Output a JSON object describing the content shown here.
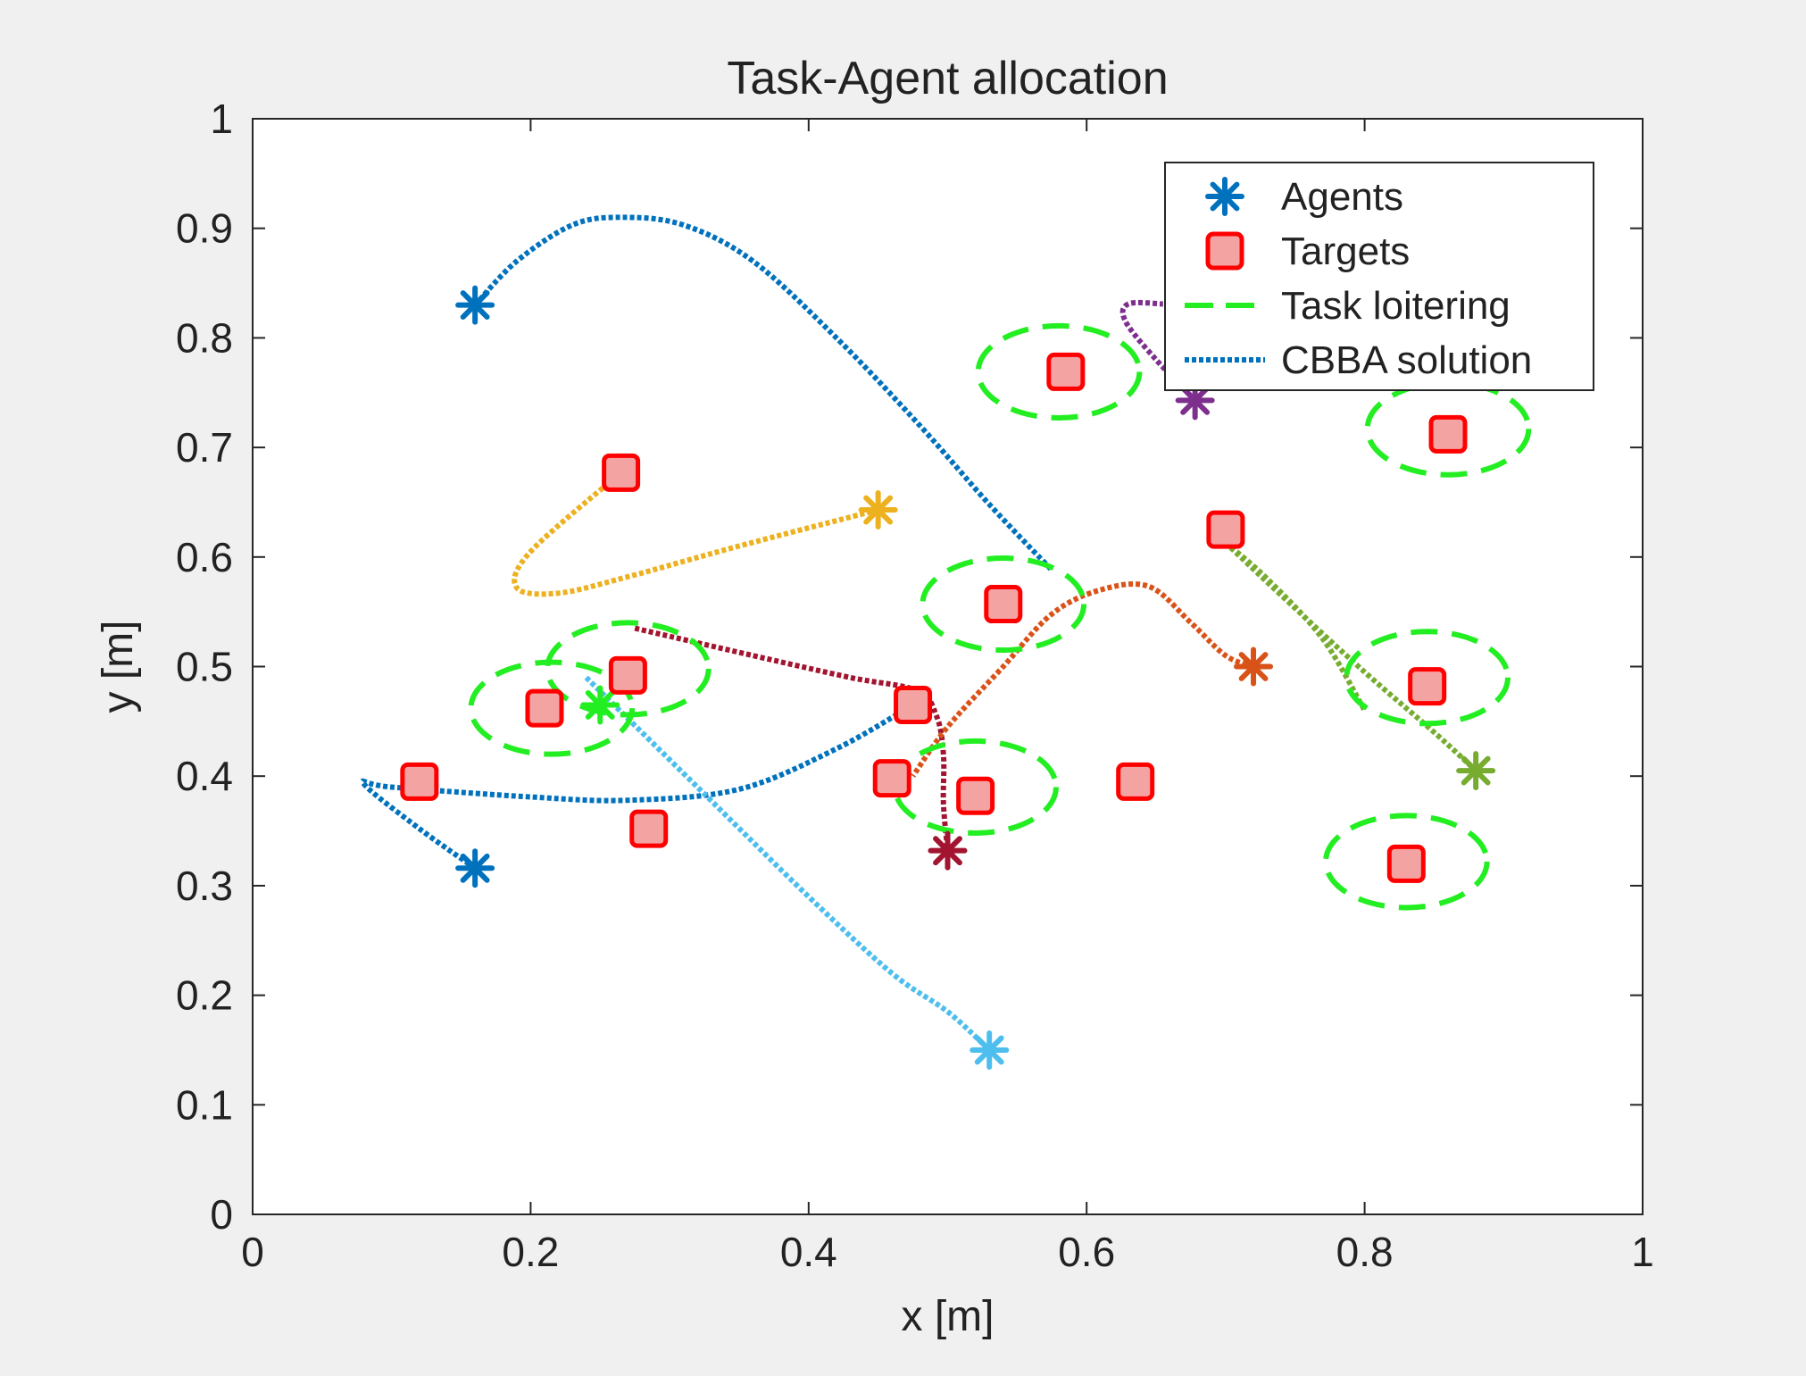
{
  "chart_data": {
    "type": "scatter",
    "title": "Task-Agent allocation",
    "xlabel": "x [m]",
    "ylabel": "y [m]",
    "xlim": [
      0,
      1
    ],
    "ylim": [
      0,
      1
    ],
    "xticks": [
      0,
      0.2,
      0.4,
      0.6,
      0.8,
      1
    ],
    "yticks": [
      0,
      0.1,
      0.2,
      0.3,
      0.4,
      0.5,
      0.6,
      0.7,
      0.8,
      0.9,
      1
    ],
    "xtick_labels": [
      "0",
      "0.2",
      "0.4",
      "0.6",
      "0.8",
      "1"
    ],
    "ytick_labels": [
      "0",
      "0.1",
      "0.2",
      "0.3",
      "0.4",
      "0.5",
      "0.6",
      "0.7",
      "0.8",
      "0.9",
      "1"
    ],
    "grid": false,
    "legend": {
      "position": "top-right",
      "entries": [
        {
          "label": "Agents",
          "kind": "asterisk",
          "color": "#0072BD"
        },
        {
          "label": "Targets",
          "kind": "square",
          "color": "#FF0000"
        },
        {
          "label": "Task loitering",
          "kind": "dashed",
          "color": "#22EE22"
        },
        {
          "label": "CBBA solution",
          "kind": "dotted",
          "color": "#0072BD"
        }
      ]
    },
    "colors": {
      "background": "#F0F0F0",
      "target_fill": "#F4A3A3",
      "target_edge": "#FF0000",
      "loiter": "#22EE22"
    },
    "targets": [
      {
        "x": 0.12,
        "y": 0.395
      },
      {
        "x": 0.21,
        "y": 0.462
      },
      {
        "x": 0.27,
        "y": 0.492
      },
      {
        "x": 0.265,
        "y": 0.677
      },
      {
        "x": 0.285,
        "y": 0.352
      },
      {
        "x": 0.46,
        "y": 0.398
      },
      {
        "x": 0.475,
        "y": 0.465
      },
      {
        "x": 0.52,
        "y": 0.382
      },
      {
        "x": 0.54,
        "y": 0.557
      },
      {
        "x": 0.585,
        "y": 0.769
      },
      {
        "x": 0.635,
        "y": 0.395
      },
      {
        "x": 0.7,
        "y": 0.625
      },
      {
        "x": 0.83,
        "y": 0.32
      },
      {
        "x": 0.845,
        "y": 0.482
      },
      {
        "x": 0.86,
        "y": 0.712
      }
    ],
    "loiter_circles": [
      {
        "x": 0.215,
        "y": 0.462
      },
      {
        "x": 0.27,
        "y": 0.498
      },
      {
        "x": 0.54,
        "y": 0.557
      },
      {
        "x": 0.58,
        "y": 0.769
      },
      {
        "x": 0.52,
        "y": 0.39
      },
      {
        "x": 0.83,
        "y": 0.322
      },
      {
        "x": 0.845,
        "y": 0.49
      },
      {
        "x": 0.86,
        "y": 0.717
      }
    ],
    "agents": [
      {
        "x": 0.16,
        "y": 0.83,
        "color": "#0072BD"
      },
      {
        "x": 0.16,
        "y": 0.316,
        "color": "#0072BD"
      },
      {
        "x": 0.45,
        "y": 0.643,
        "color": "#EDB120"
      },
      {
        "x": 0.53,
        "y": 0.15,
        "color": "#4DBEEE"
      },
      {
        "x": 0.5,
        "y": 0.332,
        "color": "#A2142F"
      },
      {
        "x": 0.72,
        "y": 0.5,
        "color": "#D95319"
      },
      {
        "x": 0.88,
        "y": 0.405,
        "color": "#77AC30"
      },
      {
        "x": 0.678,
        "y": 0.743,
        "color": "#7E2F8E"
      },
      {
        "x": 0.25,
        "y": 0.465,
        "color": "#22EE22"
      }
    ],
    "paths": [
      {
        "color": "#0072BD",
        "points": [
          [
            0.16,
            0.83
          ],
          [
            0.19,
            0.87
          ],
          [
            0.23,
            0.903
          ],
          [
            0.265,
            0.91
          ],
          [
            0.31,
            0.903
          ],
          [
            0.36,
            0.87
          ],
          [
            0.42,
            0.8
          ],
          [
            0.48,
            0.72
          ],
          [
            0.53,
            0.648
          ],
          [
            0.575,
            0.588
          ]
        ]
      },
      {
        "color": "#0072BD",
        "points": [
          [
            0.16,
            0.316
          ],
          [
            0.12,
            0.352
          ],
          [
            0.08,
            0.393
          ],
          [
            0.1,
            0.39
          ],
          [
            0.2,
            0.381
          ],
          [
            0.27,
            0.378
          ],
          [
            0.35,
            0.388
          ],
          [
            0.42,
            0.425
          ],
          [
            0.475,
            0.465
          ]
        ]
      },
      {
        "color": "#EDB120",
        "points": [
          [
            0.45,
            0.643
          ],
          [
            0.35,
            0.61
          ],
          [
            0.27,
            0.582
          ],
          [
            0.22,
            0.567
          ],
          [
            0.19,
            0.572
          ],
          [
            0.2,
            0.605
          ],
          [
            0.265,
            0.677
          ]
        ]
      },
      {
        "color": "#4DBEEE",
        "points": [
          [
            0.24,
            0.49
          ],
          [
            0.32,
            0.39
          ],
          [
            0.4,
            0.29
          ],
          [
            0.46,
            0.22
          ],
          [
            0.5,
            0.185
          ],
          [
            0.53,
            0.15
          ]
        ]
      },
      {
        "color": "#A2142F",
        "points": [
          [
            0.275,
            0.535
          ],
          [
            0.36,
            0.51
          ],
          [
            0.43,
            0.49
          ],
          [
            0.478,
            0.478
          ],
          [
            0.492,
            0.455
          ],
          [
            0.497,
            0.42
          ],
          [
            0.497,
            0.375
          ],
          [
            0.5,
            0.332
          ]
        ]
      },
      {
        "color": "#D95319",
        "points": [
          [
            0.72,
            0.5
          ],
          [
            0.7,
            0.51
          ],
          [
            0.675,
            0.54
          ],
          [
            0.645,
            0.573
          ],
          [
            0.61,
            0.57
          ],
          [
            0.575,
            0.548
          ],
          [
            0.54,
            0.5
          ],
          [
            0.5,
            0.445
          ],
          [
            0.475,
            0.4
          ]
        ]
      },
      {
        "color": "#77AC30",
        "points": [
          [
            0.7,
            0.613
          ],
          [
            0.74,
            0.565
          ],
          [
            0.8,
            0.495
          ],
          [
            0.85,
            0.44
          ],
          [
            0.88,
            0.405
          ]
        ]
      },
      {
        "color": "#77AC30",
        "points": [
          [
            0.7,
            0.613
          ],
          [
            0.73,
            0.58
          ],
          [
            0.77,
            0.525
          ],
          [
            0.8,
            0.46
          ]
        ]
      },
      {
        "color": "#7E2F8E",
        "points": [
          [
            0.678,
            0.743
          ],
          [
            0.65,
            0.78
          ],
          [
            0.628,
            0.815
          ],
          [
            0.63,
            0.831
          ],
          [
            0.655,
            0.831
          ]
        ]
      }
    ]
  }
}
